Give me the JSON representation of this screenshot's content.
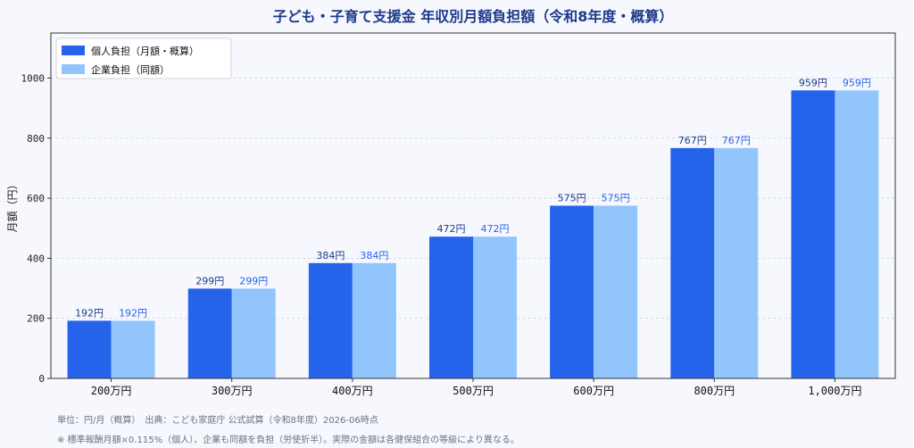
{
  "chart_data": {
    "type": "bar",
    "title": "子ども・子育て支援金 年収別月額負担額（令和8年度・概算）",
    "xlabel": "",
    "ylabel": "月額（円）",
    "categories": [
      "200万円",
      "300万円",
      "400万円",
      "500万円",
      "600万円",
      "800万円",
      "1,000万円"
    ],
    "series": [
      {
        "name": "個人負担（月額・概算）",
        "values": [
          192,
          299,
          384,
          472,
          575,
          767,
          959
        ],
        "color": "#2563eb",
        "label_color": "#1e3a8a"
      },
      {
        "name": "企業負担（同額）",
        "values": [
          192,
          299,
          384,
          472,
          575,
          767,
          959
        ],
        "color": "#93c5fd",
        "label_color": "#2563eb"
      }
    ],
    "value_suffix": "円",
    "ylim": [
      0,
      1150
    ],
    "yticks": [
      0,
      200,
      400,
      600,
      800,
      1000
    ],
    "grid": true,
    "legend": "top-left"
  },
  "footnotes": {
    "line1": "単位：円/月（概算）　出典：こども家庭庁 公式試算（令和8年度）2026-06時点",
    "line2": "※ 標準報酬月額×0.115%（個人）、企業も同額を負担（労使折半）。実際の金額は各健保組合の等級により異なる。"
  }
}
